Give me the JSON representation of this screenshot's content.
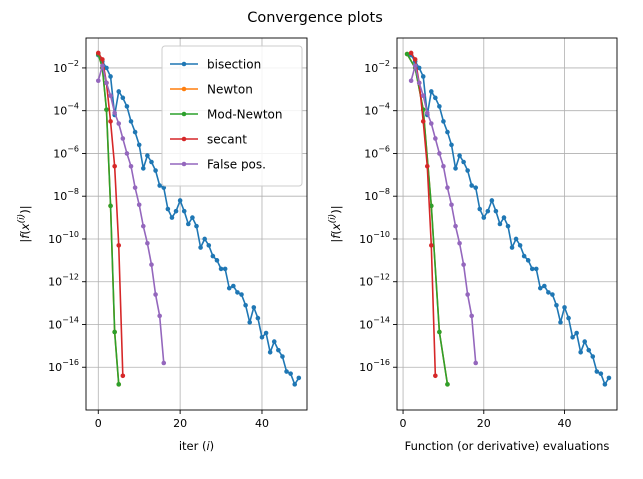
{
  "figure": {
    "suptitle": "Convergence plots"
  },
  "colors": {
    "bisection": "#1f77b4",
    "Newton": "#ff7f0e",
    "Mod-Newton": "#2ca02c",
    "secant": "#d62728",
    "False pos.": "#9467bd",
    "grid": "#b0b0b0"
  },
  "chart_data": [
    {
      "type": "line",
      "title": "",
      "xlabel": "iter (i)",
      "ylabel": "|f(x(i))|",
      "yscale": "log",
      "xlim": [
        -3,
        51
      ],
      "ylim_exp": [
        -18,
        -0.6
      ],
      "xticks": [
        0,
        20,
        40
      ],
      "yticks_exp": [
        -2,
        -4,
        -6,
        -8,
        -10,
        -12,
        -14,
        -16
      ],
      "grid": true,
      "legend": {
        "position": "top-right",
        "entries": [
          "bisection",
          "Newton",
          "Mod-Newton",
          "secant",
          "False pos."
        ]
      },
      "series": [
        {
          "name": "bisection",
          "x": [
            0,
            1,
            2,
            3,
            4,
            5,
            6,
            7,
            8,
            9,
            10,
            11,
            12,
            13,
            14,
            15,
            16,
            17,
            18,
            19,
            20,
            21,
            22,
            23,
            24,
            25,
            26,
            27,
            28,
            29,
            30,
            31,
            32,
            33,
            34,
            35,
            36,
            37,
            38,
            39,
            40,
            41,
            42,
            43,
            44,
            45,
            46,
            47,
            48,
            49
          ],
          "y_exp": [
            -1.4,
            -1.7,
            -2.0,
            -2.4,
            -4.2,
            -3.1,
            -3.4,
            -3.8,
            -4.5,
            -5.0,
            -5.6,
            -6.7,
            -6.1,
            -6.4,
            -6.8,
            -7.5,
            -7.6,
            -8.6,
            -9.0,
            -8.7,
            -8.2,
            -8.7,
            -9.3,
            -9.0,
            -9.4,
            -10.4,
            -10.0,
            -10.3,
            -10.8,
            -11.0,
            -11.4,
            -11.4,
            -12.3,
            -12.2,
            -12.5,
            -12.6,
            -13.1,
            -13.9,
            -13.2,
            -13.7,
            -14.6,
            -14.4,
            -15.3,
            -14.8,
            -15.2,
            -15.5,
            -16.2,
            -16.3,
            -16.8,
            -16.5
          ]
        },
        {
          "name": "Newton",
          "x": [
            0,
            1,
            2,
            3,
            4,
            5
          ],
          "y_exp": [
            -1.35,
            -2.0,
            -3.95,
            -8.45,
            -14.35,
            -16.8
          ]
        },
        {
          "name": "Mod-Newton",
          "x": [
            0,
            1,
            2,
            3,
            4,
            5
          ],
          "y_exp": [
            -1.35,
            -2.0,
            -3.95,
            -8.45,
            -14.35,
            -16.8
          ]
        },
        {
          "name": "secant",
          "x": [
            0,
            1,
            2,
            3,
            4,
            5,
            6
          ],
          "y_exp": [
            -1.3,
            -1.6,
            -2.7,
            -4.5,
            -6.6,
            -10.3,
            -16.4
          ]
        },
        {
          "name": "False pos.",
          "x": [
            0,
            1,
            2,
            3,
            4,
            5,
            6,
            7,
            8,
            9,
            10,
            11,
            12,
            13,
            14,
            15,
            16
          ],
          "y_exp": [
            -2.6,
            -1.9,
            -2.7,
            -3.3,
            -4.1,
            -4.6,
            -5.3,
            -6.0,
            -6.6,
            -7.6,
            -8.4,
            -9.4,
            -10.2,
            -11.2,
            -12.6,
            -13.6,
            -15.8
          ]
        }
      ]
    },
    {
      "type": "line",
      "title": "",
      "xlabel": "Function (or derivative) evaluations",
      "ylabel": "|f(x(i))|",
      "yscale": "log",
      "xlim": [
        -1.5,
        53
      ],
      "ylim_exp": [
        -18,
        -0.6
      ],
      "xticks": [
        0,
        20,
        40
      ],
      "yticks_exp": [
        -2,
        -4,
        -6,
        -8,
        -10,
        -12,
        -14,
        -16
      ],
      "grid": true,
      "legend": null,
      "series": [
        {
          "name": "bisection",
          "x": [
            2,
            3,
            4,
            5,
            6,
            7,
            8,
            9,
            10,
            11,
            12,
            13,
            14,
            15,
            16,
            17,
            18,
            19,
            20,
            21,
            22,
            23,
            24,
            25,
            26,
            27,
            28,
            29,
            30,
            31,
            32,
            33,
            34,
            35,
            36,
            37,
            38,
            39,
            40,
            41,
            42,
            43,
            44,
            45,
            46,
            47,
            48,
            49,
            50,
            51
          ],
          "y_exp": [
            -1.4,
            -1.7,
            -2.0,
            -2.4,
            -4.2,
            -3.1,
            -3.4,
            -3.8,
            -4.5,
            -5.0,
            -5.6,
            -6.7,
            -6.1,
            -6.4,
            -6.8,
            -7.5,
            -7.6,
            -8.6,
            -9.0,
            -8.7,
            -8.2,
            -8.7,
            -9.3,
            -9.0,
            -9.4,
            -10.4,
            -10.0,
            -10.3,
            -10.8,
            -11.0,
            -11.4,
            -11.4,
            -12.3,
            -12.2,
            -12.5,
            -12.6,
            -13.1,
            -13.9,
            -13.2,
            -13.7,
            -14.6,
            -14.4,
            -15.3,
            -14.8,
            -15.2,
            -15.5,
            -16.2,
            -16.3,
            -16.8,
            -16.5
          ]
        },
        {
          "name": "Newton",
          "x": [
            1,
            3,
            5,
            7,
            9,
            11
          ],
          "y_exp": [
            -1.35,
            -2.0,
            -3.95,
            -8.45,
            -14.35,
            -16.8
          ]
        },
        {
          "name": "Mod-Newton",
          "x": [
            1,
            3,
            5,
            7,
            9,
            11
          ],
          "y_exp": [
            -1.35,
            -2.0,
            -3.95,
            -8.45,
            -14.35,
            -16.8
          ]
        },
        {
          "name": "secant",
          "x": [
            2,
            3,
            4,
            5,
            6,
            7,
            8
          ],
          "y_exp": [
            -1.3,
            -1.6,
            -2.7,
            -4.5,
            -6.6,
            -10.3,
            -16.4
          ]
        },
        {
          "name": "False pos.",
          "x": [
            2,
            3,
            4,
            5,
            6,
            7,
            8,
            9,
            10,
            11,
            12,
            13,
            14,
            15,
            16,
            17,
            18
          ],
          "y_exp": [
            -2.6,
            -1.9,
            -2.7,
            -3.3,
            -4.1,
            -4.6,
            -5.3,
            -6.0,
            -6.6,
            -7.6,
            -8.4,
            -9.4,
            -10.2,
            -11.2,
            -12.6,
            -13.6,
            -15.8
          ]
        }
      ]
    }
  ]
}
